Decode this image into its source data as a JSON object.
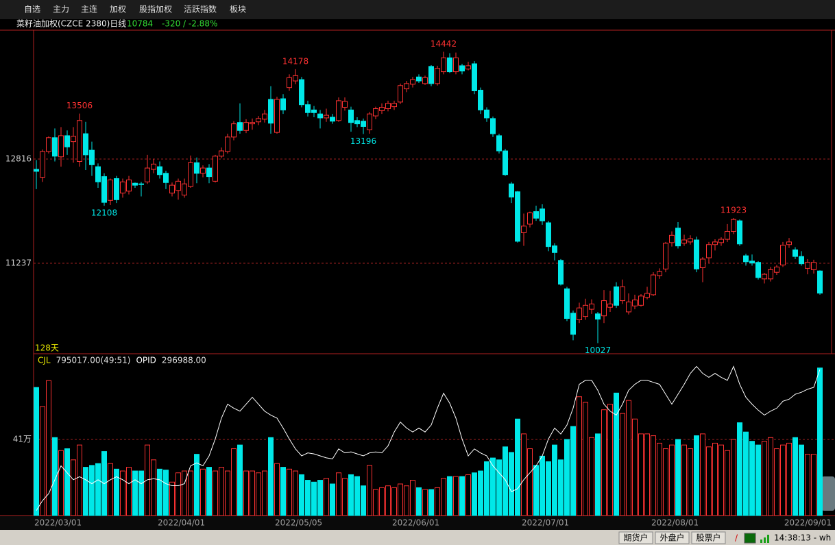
{
  "menu": [
    "自选",
    "主力",
    "主连",
    "加权",
    "股指加权",
    "活跃指数",
    "板块"
  ],
  "header": {
    "instrument": "菜籽油加权(CZCE 2380)日线",
    "last": "10784",
    "change": "-320 / -2.88%"
  },
  "status_bar": {
    "buttons": [
      "期货户",
      "外盘户",
      "股票户"
    ],
    "separator": "/",
    "clock": "14:38:13 - wh"
  },
  "chart_data": [
    {
      "type": "candlestick",
      "period_label": "128天",
      "categories": [
        "2022/03/01",
        null,
        null,
        null,
        null,
        null,
        null,
        null,
        null,
        null,
        null,
        null,
        null,
        null,
        null,
        null,
        null,
        null,
        null,
        null,
        "2022/04/01",
        null,
        null,
        null,
        null,
        null,
        null,
        null,
        null,
        null,
        null,
        null,
        null,
        null,
        null,
        null,
        null,
        null,
        null,
        "2022/05/05",
        null,
        null,
        null,
        null,
        null,
        null,
        null,
        null,
        null,
        null,
        null,
        null,
        null,
        null,
        null,
        null,
        null,
        null,
        "2022/06/01",
        null,
        null,
        null,
        null,
        null,
        null,
        null,
        null,
        null,
        null,
        null,
        null,
        null,
        null,
        null,
        null,
        null,
        null,
        null,
        null,
        "2022/07/01",
        null,
        null,
        null,
        null,
        null,
        null,
        null,
        null,
        null,
        null,
        null,
        null,
        null,
        null,
        null,
        null,
        null,
        null,
        null,
        null,
        "2022/08/01",
        null,
        null,
        null,
        null,
        null,
        null,
        null,
        null,
        null,
        null,
        null,
        null,
        null,
        null,
        null,
        null,
        null,
        null,
        null,
        null,
        null,
        null,
        "2022/09/01",
        null,
        null,
        null,
        null
      ],
      "open": [
        12660,
        12540,
        12930,
        13140,
        12850,
        13170,
        13080,
        12780,
        13200,
        12950,
        12700,
        12550,
        12190,
        12520,
        12300,
        12330,
        12450,
        12440,
        12470,
        12660,
        12700,
        12600,
        12300,
        12340,
        12270,
        12400,
        12760,
        12600,
        12680,
        12480,
        12860,
        12930,
        13150,
        13370,
        13250,
        13350,
        13380,
        13420,
        13720,
        13220,
        13730,
        13900,
        14000,
        14020,
        13640,
        13560,
        13500,
        13440,
        13450,
        13400,
        13600,
        13560,
        13400,
        13390,
        13260,
        13470,
        13550,
        13580,
        13610,
        13680,
        13880,
        13950,
        14060,
        13960,
        14220,
        13960,
        14140,
        14350,
        14140,
        14230,
        14180,
        14260,
        13860,
        13560,
        13430,
        13170,
        12940,
        12440,
        12320,
        11700,
        11830,
        12020,
        12060,
        11850,
        11500,
        11280,
        10850,
        10480,
        10380,
        10430,
        10540,
        10470,
        10440,
        10570,
        10880,
        10670,
        10500,
        10590,
        10600,
        10720,
        10760,
        11050,
        11150,
        11550,
        11770,
        11540,
        11560,
        11590,
        11170,
        11320,
        11520,
        11550,
        11600,
        11720,
        11880,
        11350,
        11270,
        11250,
        11000,
        11000,
        11100,
        11210,
        11520,
        11440,
        11340,
        11160,
        11140,
        11120
      ],
      "high": [
        12800,
        12960,
        13160,
        13280,
        13300,
        13250,
        13300,
        13506,
        13380,
        13080,
        12750,
        12600,
        12520,
        12560,
        12520,
        12560,
        12460,
        12470,
        12880,
        12820,
        12780,
        12640,
        12460,
        12520,
        12520,
        12870,
        12840,
        12720,
        12740,
        12880,
        12990,
        13200,
        13390,
        13660,
        13420,
        13430,
        13470,
        13560,
        13920,
        13760,
        13800,
        14100,
        14178,
        14060,
        13700,
        13620,
        13560,
        13580,
        13500,
        13750,
        13750,
        13610,
        13450,
        13430,
        13530,
        13610,
        13660,
        13700,
        13700,
        13960,
        14000,
        14060,
        14100,
        14080,
        14240,
        14230,
        14442,
        14420,
        14430,
        14260,
        14290,
        14300,
        13900,
        13600,
        13460,
        13200,
        12970,
        12470,
        12330,
        11990,
        12020,
        12110,
        12130,
        11880,
        11540,
        11300,
        10880,
        10520,
        10640,
        10700,
        10690,
        10500,
        10830,
        10820,
        10950,
        10990,
        10780,
        10760,
        10770,
        10880,
        11100,
        11160,
        11560,
        11720,
        11860,
        11670,
        11660,
        11640,
        11330,
        11560,
        11600,
        11630,
        11830,
        11923,
        11900,
        11380,
        11370,
        11270,
        11090,
        11180,
        11210,
        11560,
        11620,
        11480,
        11420,
        11300,
        11290,
        11130
      ],
      "low": [
        12360,
        12470,
        12900,
        12780,
        12700,
        12880,
        12760,
        12700,
        12650,
        12560,
        12380,
        12108,
        12120,
        12150,
        12230,
        12280,
        12380,
        12250,
        12440,
        12600,
        12520,
        12360,
        12250,
        12200,
        12230,
        12380,
        12450,
        12540,
        12450,
        12460,
        12830,
        12900,
        13100,
        13200,
        13210,
        13260,
        13330,
        13370,
        13200,
        13200,
        13500,
        13850,
        13950,
        13600,
        13460,
        13450,
        13280,
        13380,
        13350,
        13380,
        13550,
        13230,
        13300,
        13196,
        13200,
        13420,
        13500,
        13540,
        13560,
        13650,
        13830,
        13900,
        13970,
        13940,
        13920,
        13930,
        14100,
        14120,
        14100,
        14100,
        14160,
        13800,
        13500,
        13380,
        13150,
        12900,
        12560,
        12150,
        11550,
        11500,
        11780,
        11880,
        11820,
        11420,
        11280,
        10900,
        10360,
        10070,
        10330,
        10380,
        10470,
        10027,
        10330,
        10500,
        10560,
        10620,
        10460,
        10540,
        10580,
        10690,
        10740,
        11000,
        11100,
        11490,
        11460,
        11500,
        11520,
        11100,
        10950,
        11240,
        11430,
        11500,
        11560,
        11680,
        11500,
        11200,
        11200,
        10990,
        10930,
        10960,
        11060,
        11180,
        11470,
        11300,
        11200,
        11070,
        11080,
        10760
      ],
      "close": [
        12630,
        12930,
        13140,
        12860,
        13170,
        13000,
        13160,
        13400,
        12880,
        12730,
        12470,
        12160,
        12500,
        12200,
        12470,
        12500,
        12420,
        12430,
        12680,
        12740,
        12580,
        12460,
        12420,
        12480,
        12440,
        12760,
        12600,
        12680,
        12550,
        12860,
        12940,
        13150,
        13350,
        13250,
        13370,
        13370,
        13430,
        13500,
        13360,
        13720,
        13560,
        14050,
        14080,
        13640,
        13520,
        13520,
        13440,
        13480,
        13390,
        13700,
        13690,
        13370,
        13350,
        13310,
        13500,
        13580,
        13600,
        13660,
        13660,
        13930,
        13960,
        14020,
        14000,
        14050,
        13960,
        14190,
        14350,
        14140,
        14350,
        14150,
        14230,
        13850,
        13560,
        13440,
        13200,
        12940,
        12580,
        12240,
        11570,
        11800,
        12000,
        11920,
        11880,
        11490,
        11400,
        10920,
        10400,
        10160,
        10560,
        10600,
        10620,
        10390,
        10670,
        10620,
        10600,
        10880,
        10650,
        10680,
        10740,
        10780,
        11060,
        11110,
        11540,
        11660,
        11500,
        11590,
        11610,
        11150,
        11300,
        11520,
        11560,
        11600,
        11720,
        11900,
        11530,
        11260,
        11240,
        11020,
        11070,
        11140,
        11180,
        11510,
        11560,
        11340,
        11230,
        11250,
        11250,
        10784
      ],
      "ylim": [
        9876,
        14759
      ],
      "yticks": [
        12816,
        11237
      ],
      "grid": true,
      "up_color": "#ff3232",
      "down_color": "#00e8e8",
      "peak_labels": [
        "13506",
        "14178",
        "14442",
        "11923"
      ],
      "trough_labels": [
        "12108",
        "13196",
        "10027"
      ]
    },
    {
      "type": "bar",
      "series": [
        {
          "name": "CJL",
          "color": "#e6e600",
          "readout": "795017.00(49:51)",
          "values": [
            690000,
            587000,
            727000,
            420000,
            350000,
            360000,
            300000,
            380000,
            260000,
            270000,
            280000,
            345000,
            280000,
            250000,
            240000,
            260000,
            240000,
            240000,
            380000,
            300000,
            250000,
            245000,
            180000,
            230000,
            240000,
            240000,
            330000,
            250000,
            260000,
            240000,
            260000,
            240000,
            360000,
            380000,
            240000,
            240000,
            230000,
            240000,
            420000,
            280000,
            260000,
            250000,
            240000,
            220000,
            190000,
            180000,
            190000,
            200000,
            170000,
            230000,
            200000,
            220000,
            210000,
            160000,
            270000,
            140000,
            150000,
            160000,
            150000,
            170000,
            160000,
            190000,
            150000,
            140000,
            140000,
            150000,
            200000,
            210000,
            210000,
            210000,
            220000,
            230000,
            240000,
            290000,
            310000,
            300000,
            370000,
            340000,
            520000,
            440000,
            360000,
            270000,
            320000,
            290000,
            380000,
            300000,
            410000,
            480000,
            640000,
            610000,
            420000,
            440000,
            570000,
            600000,
            660000,
            550000,
            620000,
            520000,
            440000,
            440000,
            430000,
            390000,
            360000,
            380000,
            410000,
            380000,
            360000,
            430000,
            440000,
            370000,
            390000,
            380000,
            350000,
            410000,
            500000,
            450000,
            400000,
            380000,
            400000,
            420000,
            360000,
            380000,
            390000,
            420000,
            380000,
            330000,
            330000,
            795017
          ]
        },
        {
          "name": "OPID",
          "color": "#ffffff",
          "readout": "296988.00",
          "axis": "y2",
          "type": "line",
          "values": [
            155000,
            165000,
            172000,
            186000,
            200000,
            193000,
            186000,
            189000,
            186000,
            182000,
            186000,
            182000,
            186000,
            189000,
            186000,
            182000,
            186000,
            182000,
            186000,
            187000,
            186000,
            182000,
            180000,
            180000,
            182000,
            200000,
            203000,
            200000,
            210000,
            227000,
            248000,
            262000,
            258000,
            255000,
            262000,
            269000,
            262000,
            255000,
            251000,
            248000,
            238000,
            227000,
            217000,
            210000,
            213000,
            212000,
            210000,
            208000,
            207000,
            217000,
            213000,
            214000,
            212000,
            210000,
            213000,
            214000,
            213000,
            220000,
            234000,
            244000,
            238000,
            234000,
            238000,
            234000,
            241000,
            258000,
            273000,
            263000,
            248000,
            227000,
            210000,
            217000,
            213000,
            210000,
            200000,
            193000,
            186000,
            174000,
            177000,
            186000,
            193000,
            200000,
            210000,
            227000,
            238000,
            232000,
            241000,
            258000,
            282000,
            286000,
            286000,
            276000,
            262000,
            255000,
            251000,
            262000,
            276000,
            282000,
            286000,
            286000,
            284000,
            282000,
            272000,
            262000,
            272000,
            282000,
            293000,
            300000,
            293000,
            289000,
            293000,
            289000,
            286000,
            300000,
            282000,
            269000,
            262000,
            256000,
            251000,
            255000,
            258000,
            265000,
            267000,
            272000,
            274000,
            277000,
            279000,
            296988
          ]
        }
      ],
      "ylim": [
        0,
        857000
      ],
      "yticks": [
        {
          "value": 410000,
          "label": "41万"
        }
      ],
      "y2lim": [
        150000,
        310000
      ],
      "grid": true
    }
  ]
}
